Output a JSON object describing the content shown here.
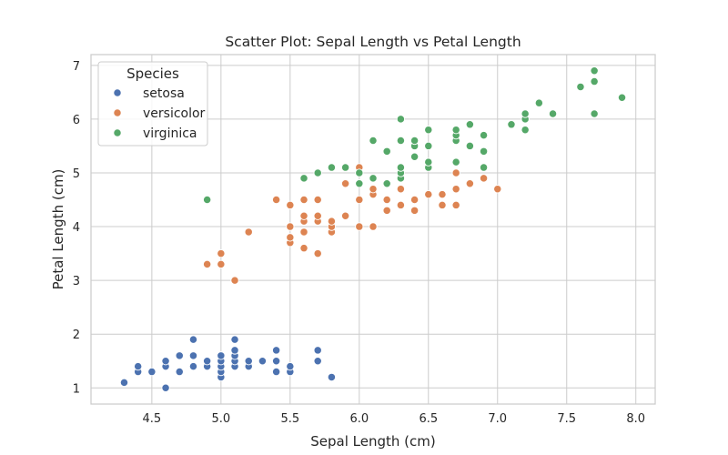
{
  "chart_data": {
    "type": "scatter",
    "title": "Scatter Plot: Sepal Length vs Petal Length",
    "xlabel": "Sepal Length (cm)",
    "ylabel": "Petal Length (cm)",
    "xlim": [
      4.06,
      8.14
    ],
    "ylim": [
      0.7,
      7.2
    ],
    "x_ticks": [
      4.5,
      5.0,
      5.5,
      6.0,
      6.5,
      7.0,
      7.5,
      8.0
    ],
    "x_tick_labels": [
      "4.5",
      "5.0",
      "5.5",
      "6.0",
      "6.5",
      "7.0",
      "7.5",
      "8.0"
    ],
    "y_ticks": [
      1,
      2,
      3,
      4,
      5,
      6,
      7
    ],
    "y_tick_labels": [
      "1",
      "2",
      "3",
      "4",
      "5",
      "6",
      "7"
    ],
    "grid": true,
    "legend": {
      "title": "Species",
      "placement": "top-left"
    },
    "series": [
      {
        "name": "setosa",
        "color": "#4c72b0",
        "points": [
          [
            4.3,
            1.1
          ],
          [
            4.4,
            1.3
          ],
          [
            4.4,
            1.4
          ],
          [
            4.5,
            1.3
          ],
          [
            4.6,
            1.0
          ],
          [
            4.6,
            1.4
          ],
          [
            4.6,
            1.5
          ],
          [
            4.7,
            1.3
          ],
          [
            4.7,
            1.6
          ],
          [
            4.8,
            1.4
          ],
          [
            4.8,
            1.6
          ],
          [
            4.8,
            1.9
          ],
          [
            4.9,
            1.4
          ],
          [
            4.9,
            1.5
          ],
          [
            5.0,
            1.2
          ],
          [
            5.0,
            1.3
          ],
          [
            5.0,
            1.4
          ],
          [
            5.0,
            1.5
          ],
          [
            5.0,
            1.6
          ],
          [
            5.1,
            1.4
          ],
          [
            5.1,
            1.5
          ],
          [
            5.1,
            1.6
          ],
          [
            5.1,
            1.7
          ],
          [
            5.1,
            1.9
          ],
          [
            5.2,
            1.4
          ],
          [
            5.2,
            1.5
          ],
          [
            5.3,
            1.5
          ],
          [
            5.4,
            1.3
          ],
          [
            5.4,
            1.5
          ],
          [
            5.4,
            1.7
          ],
          [
            5.5,
            1.3
          ],
          [
            5.5,
            1.4
          ],
          [
            5.7,
            1.5
          ],
          [
            5.7,
            1.7
          ],
          [
            5.8,
            1.2
          ]
        ]
      },
      {
        "name": "versicolor",
        "color": "#dd8452",
        "points": [
          [
            4.9,
            3.3
          ],
          [
            5.0,
            3.3
          ],
          [
            5.0,
            3.5
          ],
          [
            5.1,
            3.0
          ],
          [
            5.2,
            3.9
          ],
          [
            5.4,
            4.5
          ],
          [
            5.5,
            3.7
          ],
          [
            5.5,
            3.8
          ],
          [
            5.5,
            4.0
          ],
          [
            5.5,
            4.4
          ],
          [
            5.6,
            3.6
          ],
          [
            5.6,
            3.9
          ],
          [
            5.6,
            4.1
          ],
          [
            5.6,
            4.2
          ],
          [
            5.6,
            4.5
          ],
          [
            5.7,
            3.5
          ],
          [
            5.7,
            4.1
          ],
          [
            5.7,
            4.2
          ],
          [
            5.7,
            4.5
          ],
          [
            5.8,
            3.9
          ],
          [
            5.8,
            4.0
          ],
          [
            5.8,
            4.1
          ],
          [
            5.9,
            4.2
          ],
          [
            5.9,
            4.8
          ],
          [
            6.0,
            4.0
          ],
          [
            6.0,
            4.5
          ],
          [
            6.0,
            5.1
          ],
          [
            6.1,
            4.0
          ],
          [
            6.1,
            4.6
          ],
          [
            6.1,
            4.7
          ],
          [
            6.2,
            4.3
          ],
          [
            6.2,
            4.5
          ],
          [
            6.3,
            4.4
          ],
          [
            6.3,
            4.7
          ],
          [
            6.3,
            4.9
          ],
          [
            6.4,
            4.3
          ],
          [
            6.4,
            4.5
          ],
          [
            6.5,
            4.6
          ],
          [
            6.6,
            4.4
          ],
          [
            6.6,
            4.6
          ],
          [
            6.7,
            4.4
          ],
          [
            6.7,
            4.7
          ],
          [
            6.7,
            5.0
          ],
          [
            6.8,
            4.8
          ],
          [
            6.9,
            4.9
          ],
          [
            7.0,
            4.7
          ]
        ]
      },
      {
        "name": "virginica",
        "color": "#55a868",
        "points": [
          [
            4.9,
            4.5
          ],
          [
            5.6,
            4.9
          ],
          [
            5.7,
            5.0
          ],
          [
            5.8,
            5.1
          ],
          [
            5.9,
            5.1
          ],
          [
            6.0,
            4.8
          ],
          [
            6.0,
            5.0
          ],
          [
            6.1,
            4.9
          ],
          [
            6.1,
            5.6
          ],
          [
            6.2,
            4.8
          ],
          [
            6.2,
            5.4
          ],
          [
            6.3,
            4.9
          ],
          [
            6.3,
            5.0
          ],
          [
            6.3,
            5.1
          ],
          [
            6.3,
            5.6
          ],
          [
            6.3,
            6.0
          ],
          [
            6.4,
            5.3
          ],
          [
            6.4,
            5.5
          ],
          [
            6.4,
            5.6
          ],
          [
            6.5,
            5.1
          ],
          [
            6.5,
            5.2
          ],
          [
            6.5,
            5.5
          ],
          [
            6.5,
            5.8
          ],
          [
            6.7,
            5.2
          ],
          [
            6.7,
            5.6
          ],
          [
            6.7,
            5.7
          ],
          [
            6.7,
            5.8
          ],
          [
            6.8,
            5.5
          ],
          [
            6.8,
            5.9
          ],
          [
            6.9,
            5.1
          ],
          [
            6.9,
            5.4
          ],
          [
            6.9,
            5.7
          ],
          [
            7.1,
            5.9
          ],
          [
            7.2,
            5.8
          ],
          [
            7.2,
            6.0
          ],
          [
            7.2,
            6.1
          ],
          [
            7.3,
            6.3
          ],
          [
            7.4,
            6.1
          ],
          [
            7.6,
            6.6
          ],
          [
            7.7,
            6.1
          ],
          [
            7.7,
            6.7
          ],
          [
            7.7,
            6.9
          ],
          [
            7.9,
            6.4
          ]
        ]
      }
    ]
  }
}
